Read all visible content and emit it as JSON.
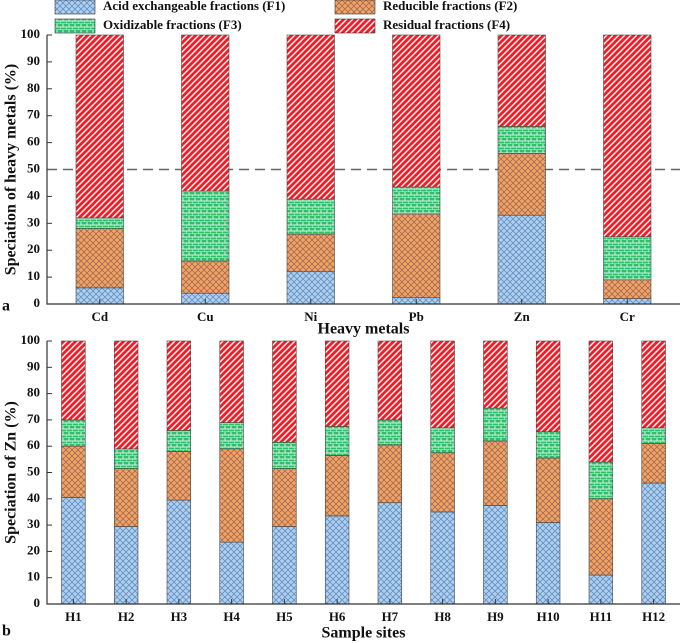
{
  "chart_data": [
    {
      "type": "stacked_bar",
      "panel_label": "a",
      "xlabel": "Heavy metals",
      "ylabel": "Speciation of heavy metals (%)",
      "categories": [
        "Cd",
        "Cu",
        "Ni",
        "Pb",
        "Zn",
        "Cr"
      ],
      "series": [
        {
          "name": "Acid exchangeable fractions (F1)",
          "color": "#a9d3f2",
          "hatch": "cross",
          "values": [
            6,
            4,
            12,
            2.5,
            33,
            2
          ]
        },
        {
          "name": "Reducible fractions (F2)",
          "color": "#f4a460",
          "hatch": "cross",
          "values": [
            22,
            12,
            14,
            31,
            23,
            7
          ]
        },
        {
          "name": "Oxidizable fractions (F3)",
          "color": "#2fbf6a",
          "hatch": "brick",
          "values": [
            4,
            26,
            13,
            10,
            10,
            16
          ]
        },
        {
          "name": "Residual fractions (F4)",
          "color": "#e8202a",
          "hatch": "diagonal",
          "values": [
            68,
            58,
            61,
            56.5,
            34,
            75
          ]
        }
      ],
      "ylim": [
        0,
        100
      ],
      "yticks": [
        0,
        10,
        20,
        30,
        40,
        50,
        60,
        70,
        80,
        90,
        100
      ],
      "reference_line": 50
    },
    {
      "type": "stacked_bar",
      "panel_label": "b",
      "xlabel": "Sample sites",
      "ylabel": "Speciation of Zn (%)",
      "categories": [
        "H1",
        "H2",
        "H3",
        "H4",
        "H5",
        "H6",
        "H7",
        "H8",
        "H9",
        "H10",
        "H11",
        "H12"
      ],
      "series": [
        {
          "color": "#a9d3f2",
          "hatch": "cross",
          "values": [
            40.5,
            29.5,
            39.5,
            23.5,
            29.5,
            33.5,
            38.5,
            35,
            37.5,
            31,
            11,
            46
          ]
        },
        {
          "color": "#f4a460",
          "hatch": "cross",
          "values": [
            19.5,
            22,
            18.5,
            35.5,
            22,
            23,
            22,
            22.5,
            24.5,
            24.5,
            29,
            15
          ]
        },
        {
          "color": "#2fbf6a",
          "hatch": "brick",
          "values": [
            10,
            7.5,
            8,
            10,
            10,
            11,
            9.5,
            9.5,
            12.5,
            10,
            14,
            6
          ]
        },
        {
          "color": "#e8202a",
          "hatch": "diagonal",
          "values": [
            30,
            41,
            34,
            31,
            38.5,
            32.5,
            30,
            33,
            25.5,
            34.5,
            46,
            33
          ]
        }
      ],
      "ylim": [
        0,
        100
      ],
      "yticks": [
        0,
        10,
        20,
        30,
        40,
        50,
        60,
        70,
        80,
        90,
        100
      ]
    }
  ]
}
